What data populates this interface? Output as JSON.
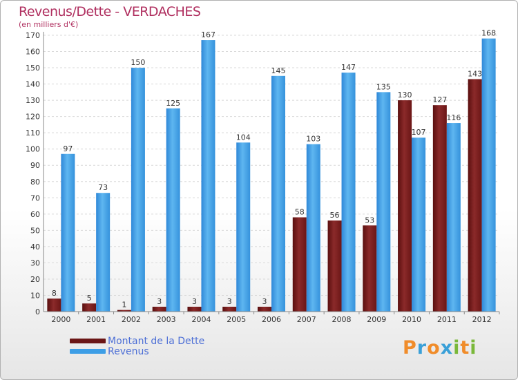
{
  "header": {
    "title": "Revenus/Dette - VERDACHES",
    "subtitle": "(en milliers d'€)"
  },
  "colors": {
    "dette": "#7a1f1f",
    "revenus": "#3d9ee6",
    "title": "#b03060",
    "legend_text": "#4d6fd6"
  },
  "chart_data": {
    "type": "bar",
    "title": "Revenus/Dette - VERDACHES",
    "ylabel": "(en milliers d'€)",
    "xlabel": "",
    "categories": [
      "2000",
      "2001",
      "2002",
      "2003",
      "2004",
      "2005",
      "2006",
      "2007",
      "2008",
      "2009",
      "2010",
      "2011",
      "2012"
    ],
    "series": [
      {
        "name": "Montant de la Dette",
        "values": [
          8,
          5,
          1,
          3,
          3,
          3,
          3,
          58,
          56,
          53,
          130,
          127,
          143
        ]
      },
      {
        "name": "Revenus",
        "values": [
          97,
          73,
          150,
          125,
          167,
          104,
          145,
          103,
          147,
          135,
          107,
          116,
          168
        ]
      }
    ],
    "ylim": [
      0,
      170
    ],
    "yticks": [
      0,
      10,
      20,
      30,
      40,
      50,
      60,
      70,
      80,
      90,
      100,
      110,
      120,
      130,
      140,
      150,
      160,
      170
    ],
    "grid": true,
    "legend": "bottom-left"
  },
  "legend": {
    "items": [
      {
        "label": "Montant de la Dette"
      },
      {
        "label": "Revenus"
      }
    ]
  },
  "logo": {
    "text": "Proxiti"
  }
}
